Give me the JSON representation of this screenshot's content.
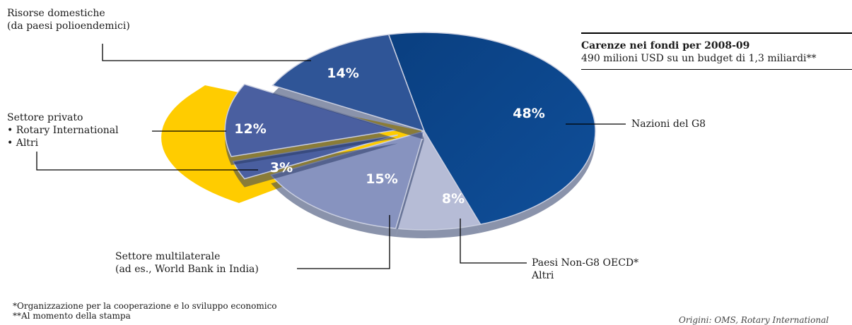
{
  "title": {
    "heading": "Carenze nei fondi per 2008-09",
    "subtitle": "490 milioni USD su un budget di 1,3 miliardi**"
  },
  "chart_data": {
    "type": "pie",
    "slices": [
      {
        "label": "Nazioni del G8",
        "value": 48,
        "color": "#0b4a8c"
      },
      {
        "label": "Paesi Non-G8 OECD* Altri",
        "value": 8,
        "color": "#b6bcd6"
      },
      {
        "label": "Settore multilaterale (ad es., World Bank in India)",
        "value": 15,
        "color": "#8793bf"
      },
      {
        "label": "Settore privato • Altri",
        "value": 3,
        "color": "#4a5fa0"
      },
      {
        "label": "Settore privato • Rotary International",
        "value": 12,
        "color": "#4a5fa0"
      },
      {
        "label": "Risorse domestiche (da paesi polioendemici)",
        "value": 14,
        "color": "#2f5597"
      }
    ],
    "highlight_color": "#ffcc00"
  },
  "pct_labels": [
    "48%",
    "8%",
    "15%",
    "3%",
    "12%",
    "14%"
  ],
  "labels": {
    "risorse_1": "Risorse domestiche",
    "risorse_2": "(da paesi polioendemici)",
    "privato_1": "Settore privato",
    "privato_2": "• Rotary International",
    "privato_3": "• Altri",
    "g8": "Nazioni del G8",
    "multi_1": "Settore multilaterale",
    "multi_2": "(ad es., World Bank in India)",
    "oecd_1": "Paesi Non-G8 OECD*",
    "oecd_2": "Altri"
  },
  "footnotes": {
    "f1": "*Organizzazione per la cooperazione e lo sviluppo economico",
    "f2": "**Al momento della stampa",
    "source": "Origini: OMS, Rotary International"
  }
}
